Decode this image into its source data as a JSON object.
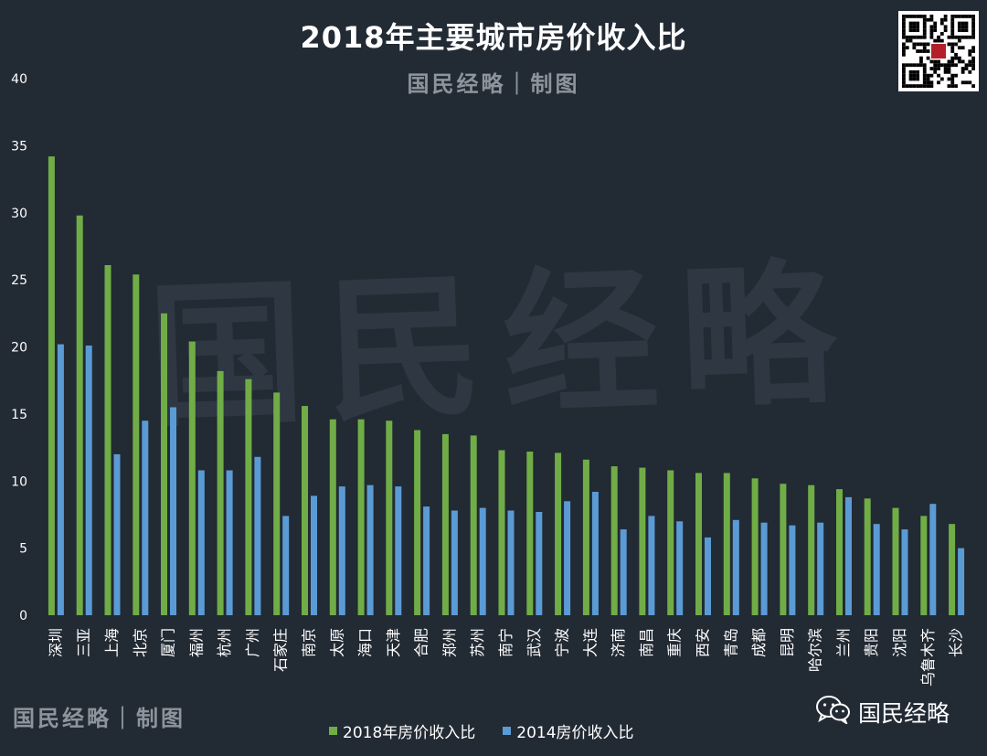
{
  "title": "2018年主要城市房价收入比",
  "subtitle": "国民经略｜制图",
  "watermark": "国民经略",
  "footer_brand": "国民经略｜制图",
  "wechat_label": "国民经略",
  "qr_icon": "qr-code-icon",
  "colors": {
    "background": "#222a34",
    "series_2018": "#70ad47",
    "series_2014": "#5b9bd5",
    "axis_text": "#ffffff",
    "muted": "#8e949b"
  },
  "legend": [
    {
      "label": "2018年房价收入比",
      "color": "#70ad47"
    },
    {
      "label": "2014房价收入比",
      "color": "#5b9bd5"
    }
  ],
  "chart_data": {
    "type": "bar",
    "title": "2018年主要城市房价收入比",
    "xlabel": "",
    "ylabel": "",
    "ylim": [
      0,
      40
    ],
    "yticks": [
      0,
      5,
      10,
      15,
      20,
      25,
      30,
      35,
      40
    ],
    "grid": false,
    "legend_position": "bottom-center",
    "categories": [
      "深圳",
      "三亚",
      "上海",
      "北京",
      "厦门",
      "福州",
      "杭州",
      "广州",
      "石家庄",
      "南京",
      "太原",
      "海口",
      "天津",
      "合肥",
      "郑州",
      "苏州",
      "南宁",
      "武汉",
      "宁波",
      "大连",
      "济南",
      "南昌",
      "重庆",
      "西安",
      "青岛",
      "成都",
      "昆明",
      "哈尔滨",
      "兰州",
      "贵阳",
      "沈阳",
      "乌鲁木齐",
      "长沙"
    ],
    "series": [
      {
        "name": "2018年房价收入比",
        "color": "#70ad47",
        "values": [
          34.2,
          29.8,
          26.1,
          25.4,
          22.5,
          20.4,
          18.2,
          17.6,
          16.6,
          15.6,
          14.6,
          14.6,
          14.5,
          13.8,
          13.5,
          13.4,
          12.3,
          12.2,
          12.1,
          11.6,
          11.1,
          11.0,
          10.8,
          10.6,
          10.6,
          10.2,
          9.8,
          9.7,
          9.4,
          8.7,
          8.0,
          7.4,
          6.8
        ]
      },
      {
        "name": "2014房价收入比",
        "color": "#5b9bd5",
        "values": [
          20.2,
          20.1,
          12.0,
          14.5,
          15.5,
          10.8,
          10.8,
          11.8,
          7.4,
          8.9,
          9.6,
          9.7,
          9.6,
          8.1,
          7.8,
          8.0,
          7.8,
          7.7,
          8.5,
          9.2,
          6.4,
          7.4,
          7.0,
          5.8,
          7.1,
          6.9,
          6.7,
          6.9,
          8.8,
          6.8,
          6.4,
          8.3,
          5.0
        ]
      }
    ]
  }
}
